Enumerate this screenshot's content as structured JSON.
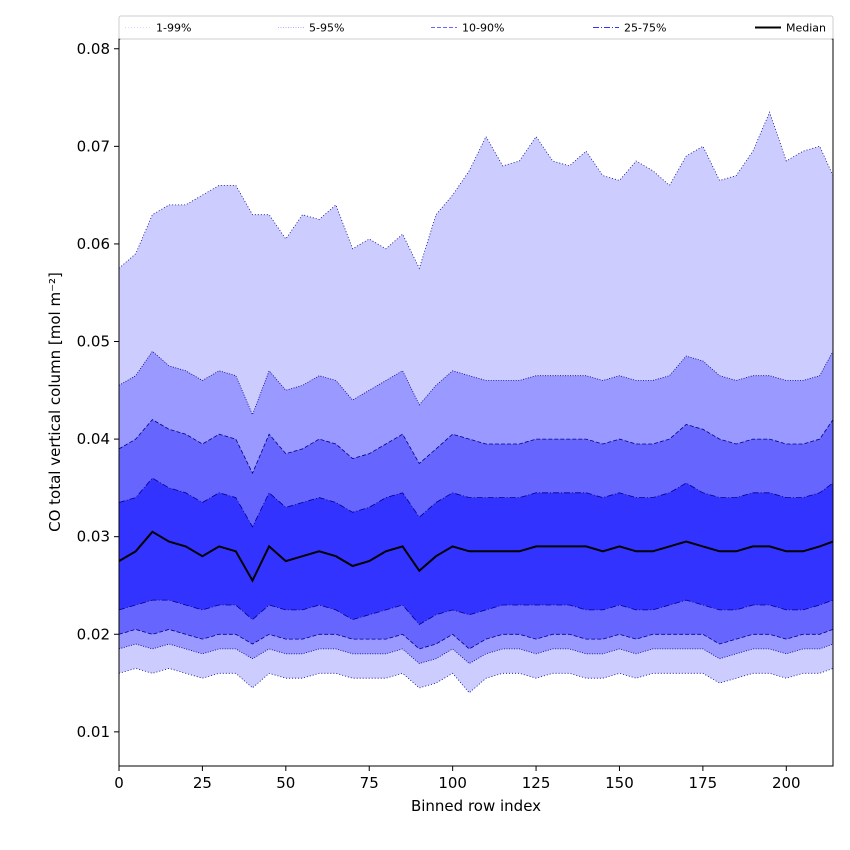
{
  "chart_data": {
    "type": "area",
    "xlabel": "Binned row index",
    "ylabel": "CO total vertical column [mol m⁻²]",
    "xlim": [
      0,
      214
    ],
    "ylim": [
      0.0065,
      0.081
    ],
    "xticks": [
      0,
      25,
      50,
      75,
      100,
      125,
      150,
      175,
      200
    ],
    "yticks": [
      0.01,
      0.02,
      0.03,
      0.04,
      0.05,
      0.06,
      0.07,
      0.08
    ],
    "ytick_labels": [
      "0.01",
      "0.02",
      "0.03",
      "0.04",
      "0.05",
      "0.06",
      "0.07",
      "0.08"
    ],
    "legend_position": "top",
    "grid": false,
    "colors": {
      "band_1_99": "#ccccff",
      "band_5_95": "#9999ff",
      "band_10_90": "#6666ff",
      "band_25_75": "#3333ff",
      "median": "#000000",
      "percentile_line": "#00008b"
    },
    "legend": [
      {
        "label": "1-99%",
        "style": "dotted-thin"
      },
      {
        "label": "5-95%",
        "style": "dotted"
      },
      {
        "label": "10-90%",
        "style": "dashed"
      },
      {
        "label": "25-75%",
        "style": "dashdot"
      },
      {
        "label": "Median",
        "style": "solid"
      }
    ],
    "x": [
      0,
      5,
      10,
      15,
      20,
      25,
      30,
      35,
      40,
      45,
      50,
      55,
      60,
      65,
      70,
      75,
      80,
      85,
      90,
      95,
      100,
      105,
      110,
      115,
      120,
      125,
      130,
      135,
      140,
      145,
      150,
      155,
      160,
      165,
      170,
      175,
      180,
      185,
      190,
      195,
      200,
      205,
      210,
      214
    ],
    "series": [
      {
        "name": "Median",
        "percentile": 50,
        "values": [
          0.0275,
          0.0285,
          0.0305,
          0.0295,
          0.029,
          0.028,
          0.029,
          0.0285,
          0.0255,
          0.029,
          0.0275,
          0.028,
          0.0285,
          0.028,
          0.027,
          0.0275,
          0.0285,
          0.029,
          0.0265,
          0.028,
          0.029,
          0.0285,
          0.0285,
          0.0285,
          0.0285,
          0.029,
          0.029,
          0.029,
          0.029,
          0.0285,
          0.029,
          0.0285,
          0.0285,
          0.029,
          0.0295,
          0.029,
          0.0285,
          0.0285,
          0.029,
          0.029,
          0.0285,
          0.0285,
          0.029,
          0.0295
        ]
      },
      {
        "name": "p1",
        "percentile": 1,
        "values": [
          0.016,
          0.0165,
          0.016,
          0.0165,
          0.016,
          0.0155,
          0.016,
          0.016,
          0.0145,
          0.016,
          0.0155,
          0.0155,
          0.016,
          0.016,
          0.0155,
          0.0155,
          0.0155,
          0.016,
          0.0145,
          0.015,
          0.016,
          0.014,
          0.0155,
          0.016,
          0.016,
          0.0155,
          0.016,
          0.016,
          0.0155,
          0.0155,
          0.016,
          0.0155,
          0.016,
          0.016,
          0.016,
          0.016,
          0.015,
          0.0155,
          0.016,
          0.016,
          0.0155,
          0.016,
          0.016,
          0.0165
        ]
      },
      {
        "name": "p5",
        "percentile": 5,
        "values": [
          0.0185,
          0.019,
          0.0185,
          0.019,
          0.0185,
          0.018,
          0.0185,
          0.0185,
          0.0175,
          0.0185,
          0.018,
          0.018,
          0.0185,
          0.0185,
          0.018,
          0.018,
          0.018,
          0.0185,
          0.017,
          0.0175,
          0.0185,
          0.017,
          0.018,
          0.0185,
          0.0185,
          0.018,
          0.0185,
          0.0185,
          0.018,
          0.018,
          0.0185,
          0.018,
          0.0185,
          0.0185,
          0.0185,
          0.0185,
          0.0175,
          0.018,
          0.0185,
          0.0185,
          0.018,
          0.0185,
          0.0185,
          0.019
        ]
      },
      {
        "name": "p10",
        "percentile": 10,
        "values": [
          0.02,
          0.0205,
          0.02,
          0.0205,
          0.02,
          0.0195,
          0.02,
          0.02,
          0.019,
          0.02,
          0.0195,
          0.0195,
          0.02,
          0.02,
          0.0195,
          0.0195,
          0.0195,
          0.02,
          0.0185,
          0.019,
          0.02,
          0.0185,
          0.0195,
          0.02,
          0.02,
          0.0195,
          0.02,
          0.02,
          0.0195,
          0.0195,
          0.02,
          0.0195,
          0.02,
          0.02,
          0.02,
          0.02,
          0.019,
          0.0195,
          0.02,
          0.02,
          0.0195,
          0.02,
          0.02,
          0.0205
        ]
      },
      {
        "name": "p25",
        "percentile": 25,
        "values": [
          0.0225,
          0.023,
          0.0235,
          0.0235,
          0.023,
          0.0225,
          0.023,
          0.023,
          0.0215,
          0.023,
          0.0225,
          0.0225,
          0.023,
          0.0225,
          0.0215,
          0.022,
          0.0225,
          0.023,
          0.021,
          0.022,
          0.0225,
          0.022,
          0.0225,
          0.023,
          0.023,
          0.023,
          0.023,
          0.023,
          0.0225,
          0.0225,
          0.023,
          0.0225,
          0.0225,
          0.023,
          0.0235,
          0.023,
          0.0225,
          0.0225,
          0.023,
          0.023,
          0.0225,
          0.0225,
          0.023,
          0.0235
        ]
      },
      {
        "name": "p75",
        "percentile": 75,
        "values": [
          0.0335,
          0.034,
          0.036,
          0.035,
          0.0345,
          0.0335,
          0.0345,
          0.034,
          0.031,
          0.0345,
          0.033,
          0.0335,
          0.034,
          0.0335,
          0.0325,
          0.033,
          0.034,
          0.0345,
          0.032,
          0.0335,
          0.0345,
          0.034,
          0.034,
          0.034,
          0.034,
          0.0345,
          0.0345,
          0.0345,
          0.0345,
          0.034,
          0.0345,
          0.034,
          0.034,
          0.0345,
          0.0355,
          0.0345,
          0.034,
          0.034,
          0.0345,
          0.0345,
          0.034,
          0.034,
          0.0345,
          0.0355
        ]
      },
      {
        "name": "p90",
        "percentile": 90,
        "values": [
          0.039,
          0.04,
          0.042,
          0.041,
          0.0405,
          0.0395,
          0.0405,
          0.04,
          0.0365,
          0.0405,
          0.0385,
          0.039,
          0.04,
          0.0395,
          0.038,
          0.0385,
          0.0395,
          0.0405,
          0.0375,
          0.039,
          0.0405,
          0.04,
          0.0395,
          0.0395,
          0.0395,
          0.04,
          0.04,
          0.04,
          0.04,
          0.0395,
          0.04,
          0.0395,
          0.0395,
          0.04,
          0.0415,
          0.041,
          0.04,
          0.0395,
          0.04,
          0.04,
          0.0395,
          0.0395,
          0.04,
          0.042
        ]
      },
      {
        "name": "p95",
        "percentile": 95,
        "values": [
          0.0455,
          0.0465,
          0.049,
          0.0475,
          0.047,
          0.046,
          0.047,
          0.0465,
          0.0425,
          0.047,
          0.045,
          0.0455,
          0.0465,
          0.046,
          0.044,
          0.045,
          0.046,
          0.047,
          0.0435,
          0.0455,
          0.047,
          0.0465,
          0.046,
          0.046,
          0.046,
          0.0465,
          0.0465,
          0.0465,
          0.0465,
          0.046,
          0.0465,
          0.046,
          0.046,
          0.0465,
          0.0485,
          0.048,
          0.0465,
          0.046,
          0.0465,
          0.0465,
          0.046,
          0.046,
          0.0465,
          0.049
        ]
      },
      {
        "name": "p99",
        "percentile": 99,
        "values": [
          0.0575,
          0.059,
          0.063,
          0.064,
          0.064,
          0.065,
          0.066,
          0.066,
          0.063,
          0.063,
          0.0605,
          0.063,
          0.0625,
          0.064,
          0.0595,
          0.0605,
          0.0595,
          0.061,
          0.0575,
          0.063,
          0.065,
          0.0675,
          0.071,
          0.068,
          0.0685,
          0.071,
          0.0685,
          0.068,
          0.0695,
          0.067,
          0.0665,
          0.0685,
          0.0675,
          0.066,
          0.069,
          0.07,
          0.0665,
          0.067,
          0.0695,
          0.0735,
          0.0685,
          0.0695,
          0.07,
          0.067
        ]
      }
    ]
  }
}
